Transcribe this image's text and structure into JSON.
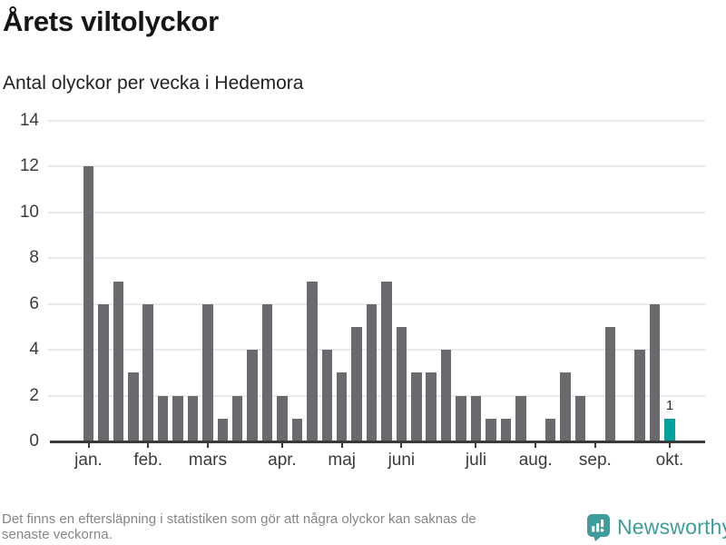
{
  "title": "Årets viltolyckor",
  "subtitle": "Antal olyckor per vecka i Hedemora",
  "footer": {
    "note_lines": [
      "Det finns en eftersläpning i statistiken som gör att några olyckor kan saknas de",
      "senaste veckorna."
    ],
    "brand": "Newsworthy"
  },
  "colors": {
    "bar": "#6c696e",
    "highlight": "#00a19b",
    "brand_teal": "#3d9d9b",
    "grid": "#e9e9eb",
    "axis": "#3a3a3a",
    "title_text": "#161616",
    "muted_text": "#868686"
  },
  "chart_data": {
    "type": "bar",
    "title": "Årets viltolyckor",
    "subtitle": "Antal olyckor per vecka i Hedemora",
    "x_unit": "vecka",
    "ylabel": "",
    "xlabel": "",
    "ylim": [
      0,
      14
    ],
    "yticks": [
      0,
      2,
      4,
      6,
      8,
      10,
      12,
      14
    ],
    "grid": true,
    "legend": false,
    "values": [
      12,
      6,
      7,
      3,
      6,
      2,
      2,
      2,
      6,
      1,
      2,
      4,
      6,
      2,
      1,
      7,
      4,
      3,
      5,
      6,
      7,
      5,
      3,
      3,
      4,
      2,
      2,
      1,
      1,
      2,
      0,
      1,
      3,
      2,
      0,
      5,
      0,
      4,
      6,
      1
    ],
    "highlight_index": 39,
    "highlight_label": "1",
    "month_ticks": [
      {
        "label": "jan.",
        "index": 0
      },
      {
        "label": "feb.",
        "index": 4
      },
      {
        "label": "mars",
        "index": 8
      },
      {
        "label": "apr.",
        "index": 13
      },
      {
        "label": "maj",
        "index": 17
      },
      {
        "label": "juni",
        "index": 21
      },
      {
        "label": "juli",
        "index": 26
      },
      {
        "label": "aug.",
        "index": 30
      },
      {
        "label": "sep.",
        "index": 34
      },
      {
        "label": "okt.",
        "index": 39
      }
    ]
  }
}
